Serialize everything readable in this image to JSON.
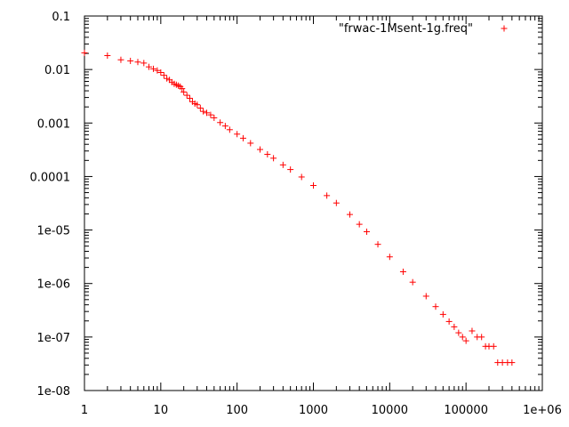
{
  "chart_data": {
    "type": "scatter",
    "x_scale": "log",
    "y_scale": "log",
    "xlim": [
      1,
      1000000
    ],
    "ylim": [
      1e-08,
      0.1
    ],
    "grid": false,
    "legend_position": "top-right",
    "x_tick_labels": [
      "1",
      "10",
      "100",
      "1000",
      "10000",
      "100000",
      "1e+06"
    ],
    "x_tick_values": [
      1,
      10,
      100,
      1000,
      10000,
      100000,
      1000000
    ],
    "y_tick_labels": [
      "1e-08",
      "1e-07",
      "1e-06",
      "1e-05",
      "0.0001",
      "0.001",
      "0.01",
      "0.1"
    ],
    "y_tick_values": [
      1e-08,
      1e-07,
      1e-06,
      1e-05,
      0.0001,
      0.001,
      0.01,
      0.1
    ],
    "marker": "+",
    "color": "#ff0000",
    "series": [
      {
        "name": "\"frwac-1Msent-1g.freq\"",
        "x": [
          1,
          2,
          3,
          4,
          5,
          6,
          7,
          8,
          9,
          10,
          11,
          12,
          13,
          14,
          15,
          16,
          17,
          18,
          19,
          20,
          22,
          24,
          26,
          28,
          30,
          33,
          36,
          40,
          45,
          50,
          60,
          70,
          80,
          100,
          120,
          150,
          200,
          250,
          300,
          400,
          500,
          700,
          1000,
          1500,
          2000,
          3000,
          4000,
          5000,
          7000,
          10000,
          15000,
          20000,
          30000,
          40000,
          50000,
          60000,
          70000,
          80000,
          90000,
          100000,
          120000,
          140000,
          160000,
          180000,
          200000,
          230000,
          260000,
          300000,
          350000,
          400000
        ],
        "y": [
          0.0205,
          0.0182,
          0.0152,
          0.0145,
          0.0138,
          0.0132,
          0.0112,
          0.0103,
          0.0096,
          0.0088,
          0.0078,
          0.0068,
          0.0064,
          0.0058,
          0.0054,
          0.0052,
          0.005,
          0.0048,
          0.0044,
          0.0038,
          0.0033,
          0.0029,
          0.0025,
          0.0023,
          0.0022,
          0.0019,
          0.00165,
          0.00155,
          0.00142,
          0.00125,
          0.00102,
          0.00088,
          0.00075,
          0.00062,
          0.00052,
          0.00042,
          0.00032,
          0.00026,
          0.00022,
          0.000165,
          0.000135,
          9.8e-05,
          6.8e-05,
          4.4e-05,
          3.2e-05,
          1.95e-05,
          1.28e-05,
          9.3e-06,
          5.4e-06,
          3.15e-06,
          1.66e-06,
          1.06e-06,
          5.8e-07,
          3.7e-07,
          2.65e-07,
          1.95e-07,
          1.55e-07,
          1.2e-07,
          1e-07,
          8.5e-08,
          1.3e-07,
          1e-07,
          1e-07,
          6.7e-08,
          6.7e-08,
          6.7e-08,
          3.33e-08,
          3.33e-08,
          3.33e-08,
          3.33e-08
        ]
      }
    ]
  }
}
